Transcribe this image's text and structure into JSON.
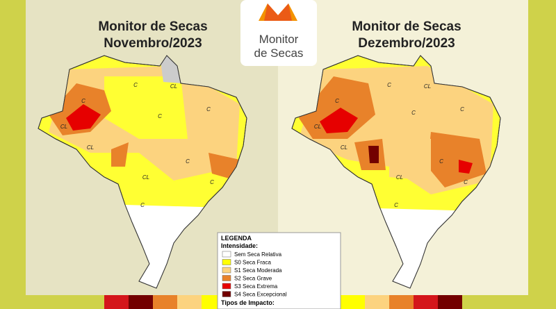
{
  "logo": {
    "line1": "Monitor",
    "line2": "de Secas"
  },
  "maps": [
    {
      "title": "Monitor de Secas",
      "subtitle": "Novembro/2023",
      "labels": [
        "CL",
        "C",
        "C",
        "CL",
        "C",
        "CL",
        "C",
        "C",
        "CL",
        "C",
        "C"
      ]
    },
    {
      "title": "Monitor de Secas",
      "subtitle": "Dezembro/2023",
      "labels": [
        "CL",
        "C",
        "C",
        "CL",
        "C",
        "C",
        "CL",
        "C",
        "CL",
        "C",
        "C"
      ]
    }
  ],
  "legend": {
    "title": "LEGENDA",
    "intensity_title": "Intensidade:",
    "items": [
      {
        "name": "Sem Seca Relativa",
        "color": "#ffffff"
      },
      {
        "name": "S0 Seca Fraca",
        "color": "#ffff00"
      },
      {
        "name": "S1 Seca Moderada",
        "color": "#fcd37f"
      },
      {
        "name": "S2 Seca Grave",
        "color": "#e8822a"
      },
      {
        "name": "S3 Seca Extrema",
        "color": "#e60000"
      },
      {
        "name": "S4 Seca Excepcional",
        "color": "#730000"
      }
    ],
    "impact_title": "Tipos de Impacto:"
  }
}
